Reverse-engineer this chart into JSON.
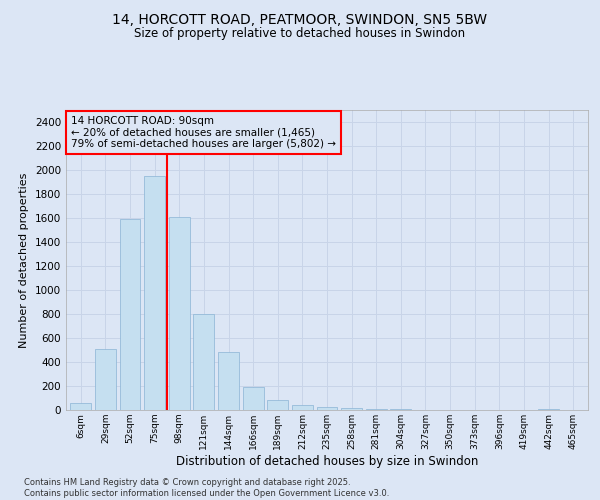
{
  "title_line1": "14, HORCOTT ROAD, PEATMOOR, SWINDON, SN5 5BW",
  "title_line2": "Size of property relative to detached houses in Swindon",
  "xlabel": "Distribution of detached houses by size in Swindon",
  "ylabel": "Number of detached properties",
  "categories": [
    "6sqm",
    "29sqm",
    "52sqm",
    "75sqm",
    "98sqm",
    "121sqm",
    "144sqm",
    "166sqm",
    "189sqm",
    "212sqm",
    "235sqm",
    "258sqm",
    "281sqm",
    "304sqm",
    "327sqm",
    "350sqm",
    "373sqm",
    "396sqm",
    "419sqm",
    "442sqm",
    "465sqm"
  ],
  "values": [
    55,
    510,
    1590,
    1950,
    1610,
    800,
    480,
    195,
    80,
    40,
    22,
    14,
    8,
    5,
    3,
    2,
    1,
    0,
    0,
    12,
    0
  ],
  "bar_color": "#c5dff0",
  "bar_edge_color": "#8ab4d4",
  "grid_color": "#c8d4e8",
  "bg_color": "#dce6f5",
  "vline_x": 3.5,
  "vline_color": "red",
  "annotation_text": "14 HORCOTT ROAD: 90sqm\n← 20% of detached houses are smaller (1,465)\n79% of semi-detached houses are larger (5,802) →",
  "annotation_box_color": "red",
  "ylim": [
    0,
    2500
  ],
  "yticks": [
    0,
    200,
    400,
    600,
    800,
    1000,
    1200,
    1400,
    1600,
    1800,
    2000,
    2200,
    2400
  ],
  "footer": "Contains HM Land Registry data © Crown copyright and database right 2025.\nContains public sector information licensed under the Open Government Licence v3.0."
}
